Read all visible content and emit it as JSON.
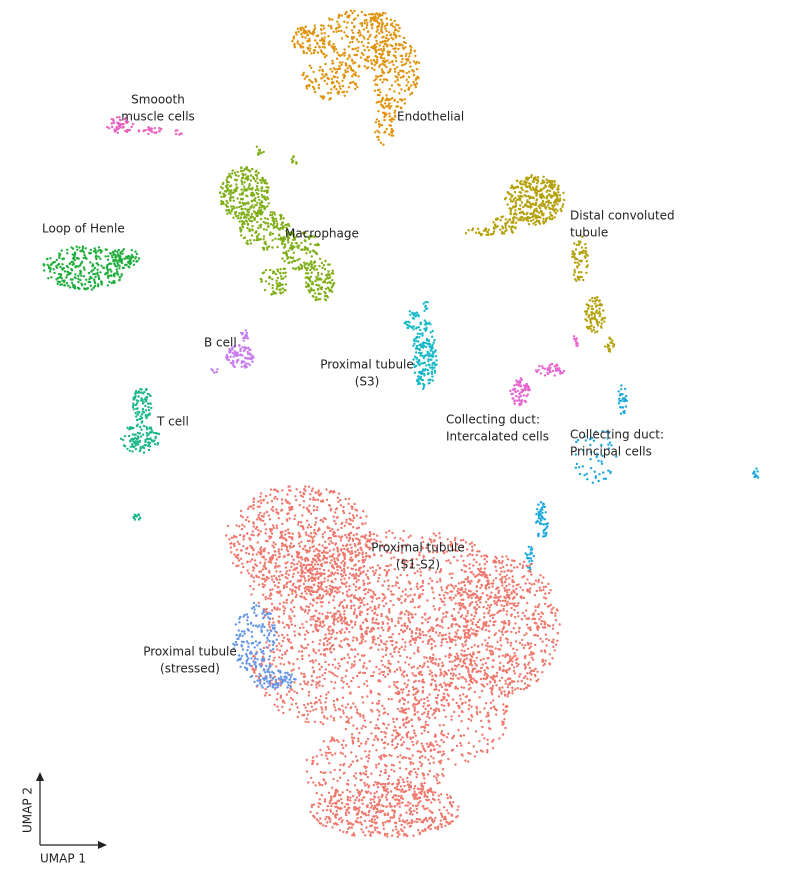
{
  "chart_data": {
    "type": "scatter",
    "x_label": "UMAP 1",
    "y_label": "UMAP 2",
    "clusters": [
      {
        "name": [
          "Endothelial"
        ],
        "color": "#e0920b"
      },
      {
        "name": [
          "Smoooth",
          "muscle cells"
        ],
        "color": "#e860c0"
      },
      {
        "name": [
          "Macrophage"
        ],
        "color": "#7fae16"
      },
      {
        "name": [
          "Loop of Henle"
        ],
        "color": "#1fae3c"
      },
      {
        "name": [
          "Distal convoluted",
          "tubule"
        ],
        "color": "#b4a008"
      },
      {
        "name": [
          "B cell"
        ],
        "color": "#c77cf0"
      },
      {
        "name": [
          "Proximal tubule",
          "(S3)"
        ],
        "color": "#16b9c8"
      },
      {
        "name": [
          "Collecting duct:",
          "Intercalated cells"
        ],
        "color": "#e764d0"
      },
      {
        "name": [
          "Collecting duct:",
          "Principal cells"
        ],
        "color": "#1aa7dc"
      },
      {
        "name": [
          "T cell"
        ],
        "color": "#1cb78a"
      },
      {
        "name": [
          "Proximal tubule",
          "(S1-S2)"
        ],
        "color": "#f0776c"
      },
      {
        "name": [
          "Proximal tubule",
          "(stressed)"
        ],
        "color": "#6495e8"
      }
    ]
  }
}
